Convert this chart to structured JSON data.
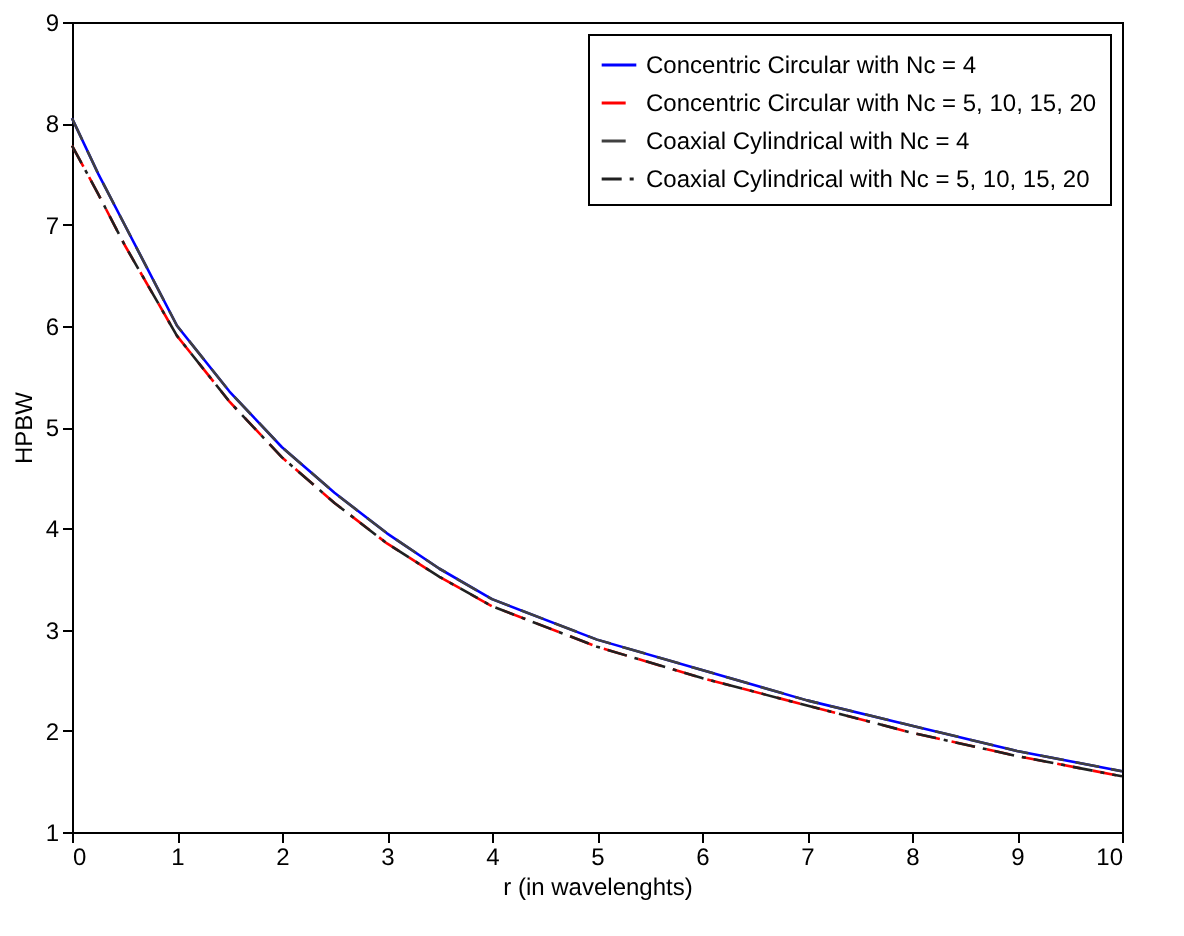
{
  "chart_data": {
    "type": "line",
    "xlabel": "r (in wavelenghts)",
    "ylabel": "HPBW",
    "x": [
      0,
      0.25,
      0.5,
      1,
      1.5,
      2,
      2.5,
      3,
      3.5,
      4,
      5,
      6,
      7,
      8,
      9,
      10
    ],
    "xlim": [
      0,
      10
    ],
    "xticks": [
      0,
      1,
      2,
      3,
      4,
      5,
      6,
      7,
      8,
      9,
      10
    ],
    "ylim": [
      1,
      9
    ],
    "yticks": [
      1,
      2,
      3,
      4,
      5,
      6,
      7,
      8,
      9
    ],
    "grid": false,
    "legend": "top right",
    "marker": "none",
    "series": [
      {
        "name": "Concentric Circular with Nc = 4",
        "color": "#0000ff",
        "line_style": "solid",
        "values": [
          8.05,
          7.5,
          7.0,
          6.0,
          5.35,
          4.8,
          4.35,
          3.95,
          3.6,
          3.3,
          2.9,
          2.6,
          2.3,
          2.05,
          1.8,
          1.6
        ]
      },
      {
        "name": "Concentric Circular with Nc = 5, 10, 15, 20",
        "color": "#ff0000",
        "line_style": "dashed",
        "values": [
          7.78,
          7.3,
          6.8,
          5.9,
          5.25,
          4.7,
          4.25,
          3.85,
          3.52,
          3.23,
          2.83,
          2.52,
          2.25,
          1.98,
          1.75,
          1.55
        ]
      },
      {
        "name": "Coaxial Cylindrical with Nc = 4",
        "color": "#404040",
        "line_style": "dashed",
        "values": [
          8.05,
          7.5,
          7.0,
          6.0,
          5.35,
          4.8,
          4.35,
          3.95,
          3.6,
          3.3,
          2.9,
          2.6,
          2.3,
          2.05,
          1.8,
          1.6
        ]
      },
      {
        "name": "Coaxial Cylindrical with Nc = 5, 10, 15, 20",
        "color": "#202020",
        "line_style": "dashdot",
        "values": [
          7.78,
          7.3,
          6.8,
          5.9,
          5.25,
          4.7,
          4.25,
          3.85,
          3.52,
          3.23,
          2.83,
          2.52,
          2.25,
          1.98,
          1.75,
          1.55
        ]
      }
    ]
  }
}
